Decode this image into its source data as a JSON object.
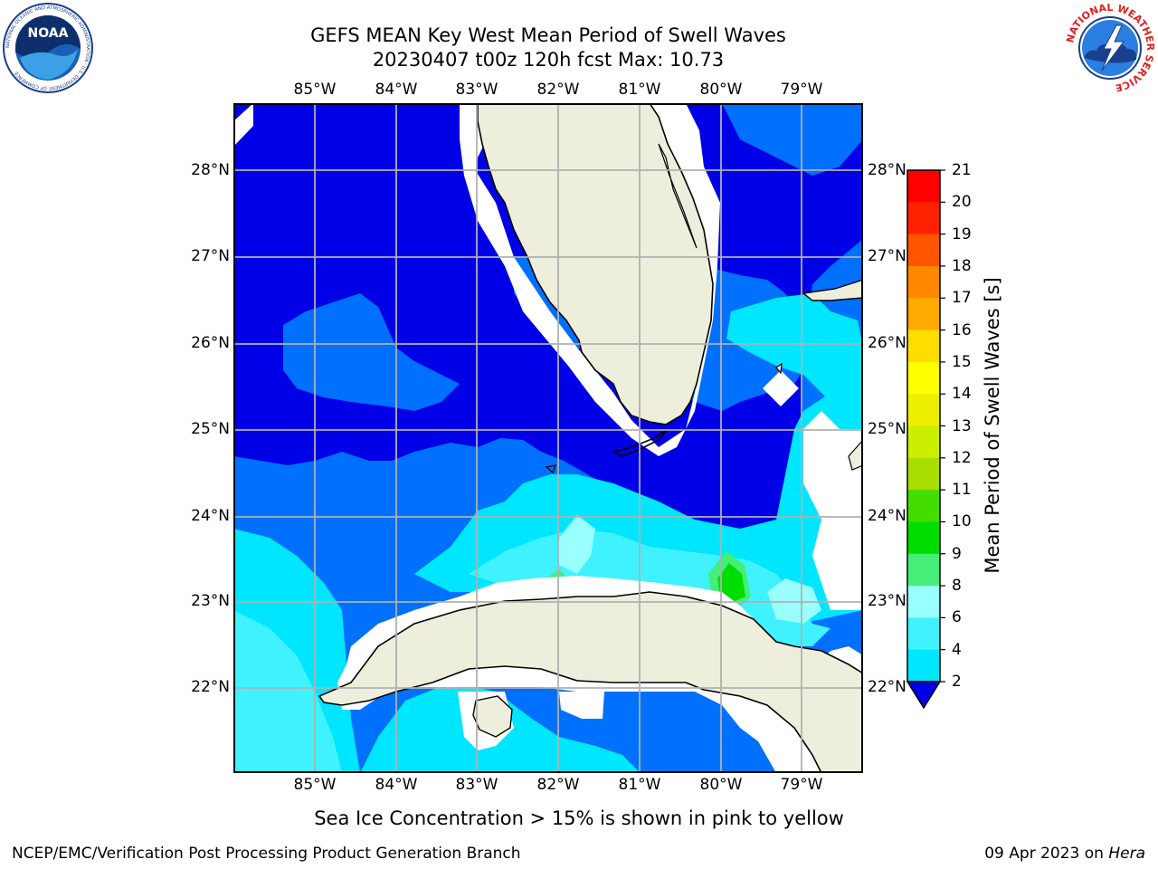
{
  "header": {
    "title_line1": "GEFS MEAN Key West Mean Period of Swell Waves",
    "title_line2": "20230407 t00z 120h fcst   Max: 10.73"
  },
  "logos": {
    "noaa": {
      "icon": "noaa-logo-icon",
      "text": "NOAA",
      "ring_text": "NATIONAL OCEANIC AND ATMOSPHERIC ADMINISTRATION · U.S. DEPARTMENT OF COMMERCE"
    },
    "nws": {
      "icon": "nws-logo-icon",
      "ring_text": "NATIONAL WEATHER SERVICE"
    }
  },
  "map": {
    "longitude_labels": [
      "85°W",
      "84°W",
      "83°W",
      "82°W",
      "81°W",
      "80°W",
      "79°W"
    ],
    "latitude_labels": [
      "28°N",
      "27°N",
      "26°N",
      "25°N",
      "24°N",
      "23°N",
      "22°N"
    ],
    "land_color": "#eeeedd",
    "nodata_color": "#ffffff",
    "gridline_color": "#b0b0b0"
  },
  "colorbar": {
    "title": "Mean Period of Swell Waves [s]",
    "tick_labels": [
      "2",
      "4",
      "6",
      "8",
      "9",
      "10",
      "11",
      "12",
      "13",
      "14",
      "15",
      "16",
      "17",
      "18",
      "19",
      "20",
      "21"
    ],
    "colors": [
      "#0000e6",
      "#0070ff",
      "#00e6ff",
      "#40f2ff",
      "#99ffff",
      "#44ee77",
      "#00dd00",
      "#44dd00",
      "#aadd00",
      "#ccee00",
      "#eeee00",
      "#ffff00",
      "#ffdd00",
      "#ffaa00",
      "#ff8800",
      "#ff5500",
      "#ff2200",
      "#ff0000"
    ]
  },
  "notes": {
    "sea_ice": "Sea Ice Concentration > 15% is shown in pink to yellow"
  },
  "footer": {
    "left": "NCEP/EMC/Verification Post Processing Product Generation Branch",
    "right_date": "09 Apr 2023 on ",
    "right_machine": "Hera"
  }
}
